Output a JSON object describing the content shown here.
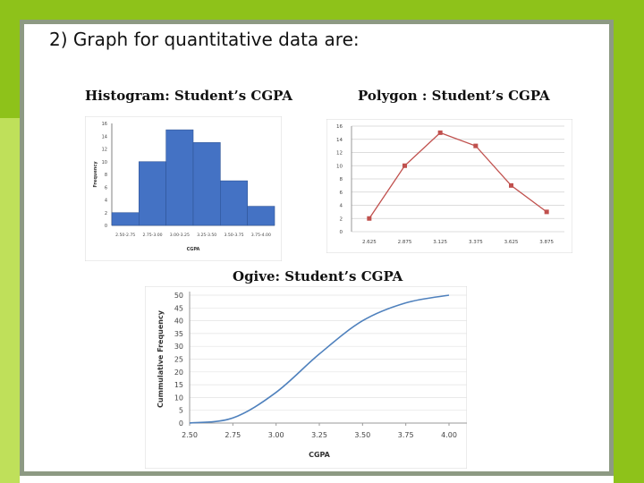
{
  "slide": {
    "title": "2) Graph for quantitative data are:",
    "colors": {
      "accent_green": "#8ec21a",
      "light_green": "#bfe05a",
      "frame_gray": "#8d9a83"
    }
  },
  "chart_data": [
    {
      "type": "bar",
      "title": "Histogram: Student’s CGPA",
      "xlabel": "CGPA",
      "ylabel": "Frequency",
      "categories": [
        "2.50-2.75",
        "2.75-3.00",
        "3.00-3.25",
        "3.25-3.50",
        "3.50-3.75",
        "3.75-4.00"
      ],
      "values": [
        2,
        10,
        15,
        13,
        7,
        3
      ],
      "ylim": [
        0,
        16
      ],
      "yticks": [
        "0",
        "2",
        "4",
        "6",
        "8",
        "10",
        "12",
        "14",
        "16"
      ],
      "bar_color": "#4472c4",
      "grid": false
    },
    {
      "type": "line",
      "title": "Polygon : Student’s CGPA",
      "x": [
        "2.625",
        "2.875",
        "3.125",
        "3.375",
        "3.625",
        "3.875"
      ],
      "values": [
        2,
        10,
        15,
        13,
        7,
        3
      ],
      "ylim": [
        0,
        16
      ],
      "yticks": [
        "0",
        "2",
        "4",
        "6",
        "8",
        "10",
        "12",
        "14",
        "16"
      ],
      "line_color": "#c0504d",
      "grid": true
    },
    {
      "type": "line",
      "title": "Ogive: Student’s CGPA",
      "xlabel": "CGPA",
      "ylabel": "Cummulative Frequency",
      "x": [
        2.5,
        2.75,
        3.0,
        3.25,
        3.5,
        3.75,
        4.0
      ],
      "values": [
        0,
        2,
        12,
        27,
        40,
        47,
        50
      ],
      "xticks": [
        "2.50",
        "2.75",
        "3.00",
        "3.25",
        "3.50",
        "3.75",
        "4.00"
      ],
      "yticks": [
        "0",
        "5",
        "10",
        "15",
        "20",
        "25",
        "30",
        "35",
        "40",
        "45",
        "50"
      ],
      "xlim": [
        2.5,
        4.0
      ],
      "ylim": [
        0,
        50
      ],
      "line_color": "#4f81bd",
      "smooth": true,
      "grid": true
    }
  ]
}
